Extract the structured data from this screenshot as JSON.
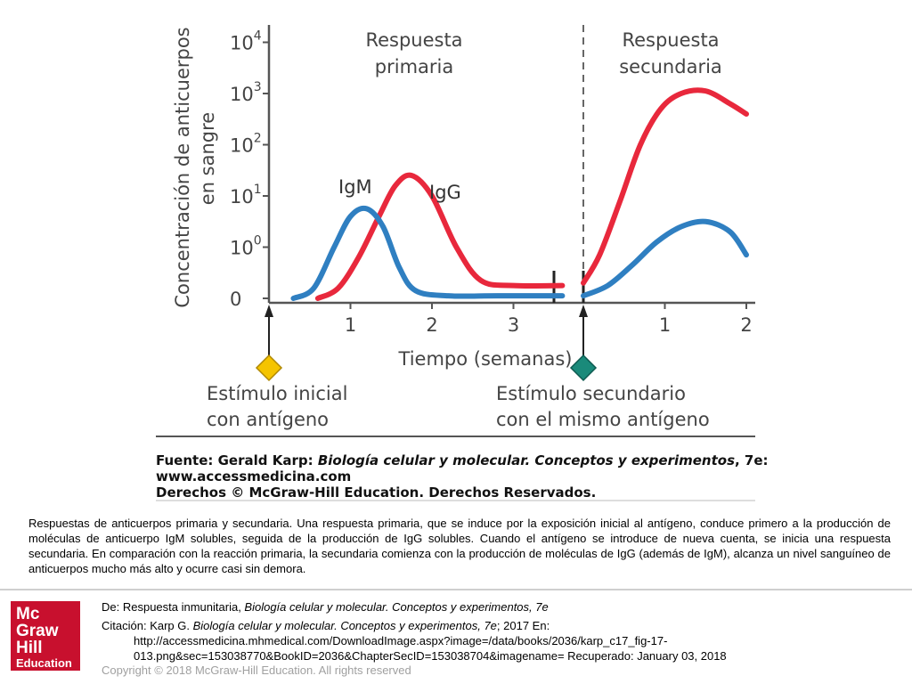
{
  "chart_data": {
    "type": "line",
    "ylabel": "Concentración de anticuerpos en sangre",
    "xlabel": "Tiempo (semanas)",
    "y_tick_labels": [
      "0",
      "10",
      "10",
      "10",
      "10",
      "10"
    ],
    "y_tick_exponents": [
      "",
      "0",
      "1",
      "2",
      "3",
      "4"
    ],
    "primary_x_tick_labels": [
      "1",
      "2",
      "3"
    ],
    "secondary_x_tick_labels": [
      "1",
      "2"
    ],
    "primary_title": [
      "Respuesta",
      "primaria"
    ],
    "secondary_title": [
      "Respuesta",
      "secundaria"
    ],
    "stimulus_initial": [
      "Estímulo inicial",
      "con antígeno"
    ],
    "stimulus_secondary": [
      "Estímulo secundario",
      "con el mismo antígeno"
    ],
    "source_lines": [
      "Fuente: Gerald Karp: Biología celular y molecular. Conceptos y experimentos, 7e:",
      "www.accessmedicina.com",
      "Derechos © McGraw-Hill Education. Derechos Reservados."
    ],
    "series": [
      {
        "name": "IgM",
        "color": "#2f7fc1",
        "primary": {
          "x": [
            0.3,
            0.55,
            0.8,
            1.0,
            1.2,
            1.4,
            1.6,
            1.8,
            2.2,
            2.8,
            3.6
          ],
          "y": [
            0,
            0.2,
            1.0,
            1.6,
            1.75,
            1.4,
            0.6,
            0.15,
            0.05,
            0.05,
            0.05
          ]
        },
        "secondary": {
          "x": [
            0,
            0.3,
            0.6,
            0.9,
            1.2,
            1.5,
            1.8,
            2.0
          ],
          "y": [
            0.05,
            0.25,
            0.65,
            1.1,
            1.4,
            1.5,
            1.3,
            0.85
          ]
        }
      },
      {
        "name": "IgG",
        "color": "#e8283c",
        "primary": {
          "x": [
            0.6,
            0.85,
            1.1,
            1.35,
            1.55,
            1.75,
            2.0,
            2.3,
            2.6,
            3.0,
            3.6
          ],
          "y": [
            0,
            0.2,
            0.8,
            1.6,
            2.2,
            2.4,
            2.0,
            1.0,
            0.35,
            0.25,
            0.25
          ]
        },
        "secondary": {
          "x": [
            0,
            0.2,
            0.45,
            0.7,
            0.95,
            1.2,
            1.5,
            1.8,
            2.0
          ],
          "y": [
            0.3,
            0.85,
            1.9,
            3.0,
            3.7,
            4.0,
            4.05,
            3.8,
            3.6
          ]
        }
      }
    ],
    "stimulus_colors": {
      "initial": "#f5c400",
      "secondary": "#1a8a7a"
    }
  },
  "caption": "Respuestas de anticuerpos primaria y secundaria. Una respuesta primaria, que se induce por la exposición inicial al antígeno, conduce primero a la producción de moléculas de anticuerpo IgM solubles, seguida de la producción de IgG solubles. Cuando el antígeno se introduce de nueva cuenta, se inicia una respuesta secundaria. En comparación con la reacción primaria, la secundaria comienza con la producción de moléculas de IgG (además de IgM), alcanza un nivel sanguíneo de anticuerpos mucho más alto y ocurre casi sin demora.",
  "reference": {
    "de_prefix": "De: Respuesta inmunitaria, ",
    "de_title": "Biología celular y molecular. Conceptos y experimentos, 7e",
    "citation_prefix": "Citación: Karp G. ",
    "citation_title": "Biología celular y molecular. Conceptos y experimentos, 7e",
    "citation_suffix": "; 2017 En:",
    "url_line1": "http://accessmedicina.mhmedical.com/DownloadImage.aspx?image=/data/books/2036/karp_c17_fig-17-",
    "url_line2": "013.png&sec=153038770&BookID=2036&ChapterSecID=153038704&imagename= Recuperado: January 03, 2018"
  },
  "copyright": "Copyright © 2018 McGraw-Hill Education. All rights reserved",
  "logo": {
    "line1": "Mc",
    "line2": "Graw",
    "line3": "Hill",
    "line4": "Education"
  }
}
